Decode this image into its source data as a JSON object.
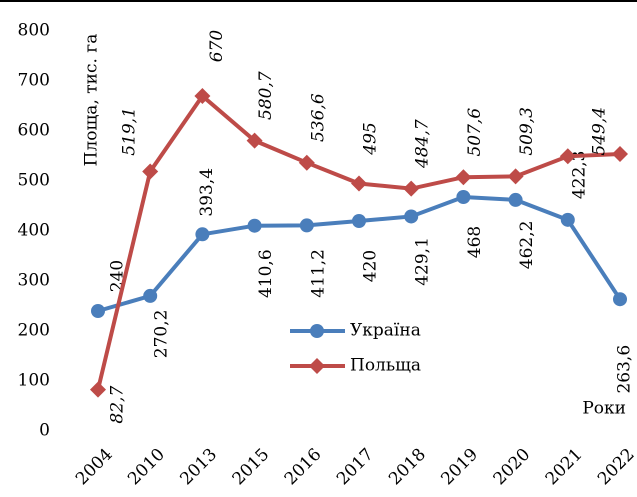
{
  "chart_data": {
    "type": "line",
    "y_label": "Площа, тис. га",
    "x_label": "Роки",
    "categories": [
      "2004",
      "2010",
      "2013",
      "2015",
      "2016",
      "2017",
      "2018",
      "2019",
      "2020",
      "2021",
      "2022"
    ],
    "series": [
      {
        "name": "Україна",
        "color": "#4a7ebb",
        "marker": "circle",
        "values": [
          240,
          270.2,
          393.4,
          410.6,
          411.2,
          420,
          429.1,
          468,
          462.2,
          422.3,
          263.6
        ],
        "value_labels": [
          "240",
          "270,2",
          "393,4",
          "410,6",
          "411,2",
          "420",
          "429,1",
          "468",
          "462,2",
          "422,3",
          "263,6"
        ]
      },
      {
        "name": "Польща",
        "color": "#be4b48",
        "marker": "diamond",
        "values": [
          82.7,
          519.1,
          670,
          580.7,
          536.6,
          495,
          484.7,
          507.6,
          509.3,
          549.4,
          554
        ],
        "value_labels": [
          "82,7",
          "519,1",
          "670",
          "580,7",
          "536,6",
          "495",
          "484,7",
          "507,6",
          "509,3",
          "549,4",
          null
        ]
      }
    ],
    "ylim": [
      0,
      800
    ],
    "yticks": [
      0,
      100,
      200,
      300,
      400,
      500,
      600,
      700,
      800
    ]
  }
}
